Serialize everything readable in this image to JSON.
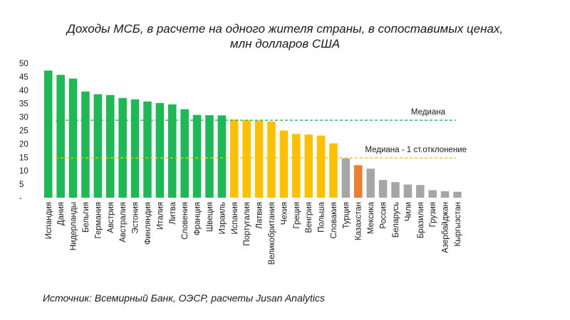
{
  "chart_data": {
    "type": "bar",
    "title": "Доходы МСБ, в расчете на одного жителя страны, в сопоставимых ценах,",
    "subtitle": "млн долларов США",
    "ylim": [
      0,
      50
    ],
    "y_ticks": [
      "-",
      "5",
      "10",
      "15",
      "20",
      "25",
      "30",
      "35",
      "40",
      "45",
      "50"
    ],
    "categories": [
      "Испандия",
      "Дания",
      "Нидерланды",
      "Бельгия",
      "Германия",
      "Австрия",
      "Австралия",
      "Эстония",
      "Финляндия",
      "Италия",
      "Литва",
      "Словения",
      "Франция",
      "Швеция",
      "Израиль",
      "Испания",
      "Португалия",
      "Латвия",
      "Великобритания",
      "Чехия",
      "Греция",
      "Венгрия",
      "Польша",
      "Словакия",
      "Турция",
      "Казахстан",
      "Мексика",
      "Россия",
      "Беларусь",
      "Чили",
      "Бразилия",
      "Грузия",
      "Азербайджан",
      "Кыргызстан"
    ],
    "values": [
      47.3,
      45.7,
      44.3,
      39.5,
      38.5,
      38.2,
      37.1,
      36.6,
      35.8,
      35.2,
      34.7,
      32.9,
      30.8,
      30.7,
      30.6,
      29.1,
      28.9,
      28.7,
      28.3,
      25.0,
      23.7,
      23.5,
      23.1,
      20.2,
      14.6,
      12.1,
      10.8,
      6.6,
      5.8,
      4.9,
      4.7,
      2.8,
      2.4,
      2.2
    ],
    "groups": [
      "above-median",
      "above-median",
      "above-median",
      "above-median",
      "above-median",
      "above-median",
      "above-median",
      "above-median",
      "above-median",
      "above-median",
      "above-median",
      "above-median",
      "above-median",
      "above-median",
      "above-median",
      "median-band",
      "median-band",
      "median-band",
      "median-band",
      "median-band",
      "median-band",
      "median-band",
      "median-band",
      "median-band",
      "below",
      "kazakhstan",
      "below",
      "below",
      "below",
      "below",
      "below",
      "below",
      "below",
      "below"
    ],
    "colors": {
      "above-median": "#1db954",
      "median-band": "#ffc000",
      "below": "#a6a6a6",
      "kazakhstan": "#ed7d31",
      "median_line": "#1db954",
      "sd_line": "#ffc000"
    },
    "reference_lines": [
      {
        "name": "Медиана",
        "value": 28.8
      },
      {
        "name": "Медиана - 1 ст.отклонение",
        "value": 14.8
      }
    ]
  },
  "source": "Источник: Всемирный Банк, ОЭСР, расчеты Jusan Analytics"
}
